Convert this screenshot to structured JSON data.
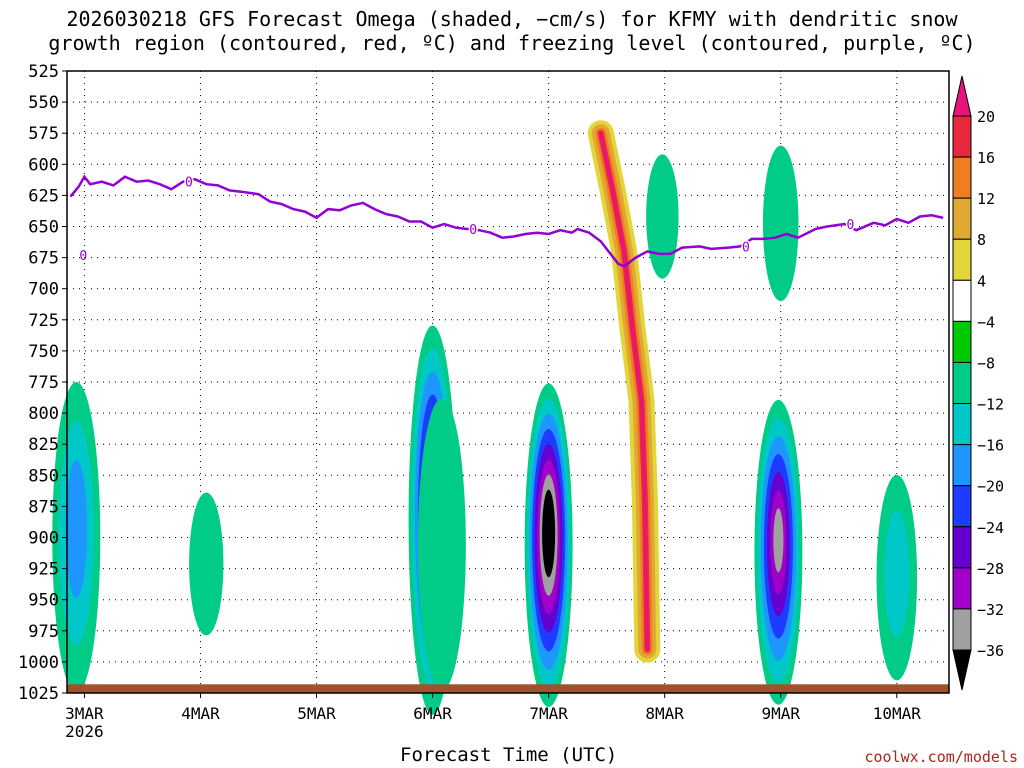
{
  "title": {
    "line1": "2026030218 GFS Forecast Omega (shaded, −cm/s) for KFMY with dendritic snow",
    "line2": "growth region (contoured, red, ºC) and freezing level (contoured, purple, ºC)"
  },
  "credit": "coolwx.com/models",
  "chart_data": {
    "type": "heatmap",
    "title": "2026030218 GFS Forecast Omega (shaded, −cm/s) for KFMY with dendritic snow growth region (contoured, red, ºC) and freezing level (contoured, purple, ºC)",
    "xlabel": "Forecast Time (UTC)",
    "ylabel": "",
    "x_range_days": [
      -0.15,
      7.45
    ],
    "x_ticks": [
      {
        "day": 0,
        "label": "3MAR",
        "sublabel": "2026"
      },
      {
        "day": 1,
        "label": "4MAR"
      },
      {
        "day": 2,
        "label": "5MAR"
      },
      {
        "day": 3,
        "label": "6MAR"
      },
      {
        "day": 4,
        "label": "7MAR"
      },
      {
        "day": 5,
        "label": "8MAR"
      },
      {
        "day": 6,
        "label": "9MAR"
      },
      {
        "day": 7,
        "label": "10MAR"
      }
    ],
    "y_range_hpa": [
      1025,
      525
    ],
    "y_ticks": [
      "525",
      "550",
      "575",
      "600",
      "625",
      "650",
      "675",
      "700",
      "725",
      "750",
      "775",
      "800",
      "825",
      "850",
      "875",
      "900",
      "925",
      "950",
      "975",
      "1000",
      "1025"
    ],
    "grid": "dotted",
    "colorbar": {
      "position": "right",
      "levels": [
        -36,
        -32,
        -28,
        -24,
        -20,
        -16,
        -12,
        -8,
        -4,
        4,
        8,
        12,
        16,
        20
      ],
      "labels": [
        "20",
        "16",
        "12",
        "8",
        "4",
        "−4",
        "−8",
        "−12",
        "−16",
        "−20",
        "−24",
        "−28",
        "−32",
        "−36"
      ],
      "colors": {
        "gt20": "#e8147a",
        "16to20": "#e8283c",
        "12to16": "#ef7d22",
        "8to12": "#e0a933",
        "4to8": "#e3d53a",
        "m4to4": "#ffffff",
        "m8tom4": "#00c800",
        "m12tom8": "#00cc88",
        "m16tom12": "#00c8c8",
        "m20tom16": "#1e96ff",
        "m24tom20": "#1e3cff",
        "m28tom24": "#6400d0",
        "m32tom28": "#a000c8",
        "m36tom32": "#a0a0a0",
        "ltm36": "#000000"
      }
    },
    "freezing_level": {
      "label": "0",
      "color": "#9400d3",
      "points": [
        [
          -0.12,
          626
        ],
        [
          -0.05,
          618
        ],
        [
          0.0,
          610
        ],
        [
          0.05,
          616
        ],
        [
          0.15,
          614
        ],
        [
          0.25,
          617
        ],
        [
          0.35,
          610
        ],
        [
          0.45,
          614
        ],
        [
          0.55,
          613
        ],
        [
          0.65,
          616
        ],
        [
          0.75,
          620
        ],
        [
          0.85,
          614
        ],
        [
          0.95,
          612
        ],
        [
          1.05,
          616
        ],
        [
          1.15,
          617
        ],
        [
          1.25,
          621
        ],
        [
          1.35,
          622
        ],
        [
          1.5,
          624
        ],
        [
          1.6,
          630
        ],
        [
          1.7,
          632
        ],
        [
          1.8,
          636
        ],
        [
          1.9,
          638
        ],
        [
          2.0,
          643
        ],
        [
          2.1,
          636
        ],
        [
          2.2,
          637
        ],
        [
          2.3,
          633
        ],
        [
          2.4,
          631
        ],
        [
          2.5,
          636
        ],
        [
          2.6,
          640
        ],
        [
          2.7,
          642
        ],
        [
          2.8,
          646
        ],
        [
          2.9,
          646
        ],
        [
          3.0,
          651
        ],
        [
          3.1,
          648
        ],
        [
          3.2,
          651
        ],
        [
          3.3,
          652
        ],
        [
          3.4,
          653
        ],
        [
          3.5,
          655
        ],
        [
          3.6,
          659
        ],
        [
          3.7,
          658
        ],
        [
          3.8,
          656
        ],
        [
          3.9,
          655
        ],
        [
          4.0,
          656
        ],
        [
          4.1,
          653
        ],
        [
          4.2,
          655
        ],
        [
          4.25,
          652
        ],
        [
          4.35,
          655
        ],
        [
          4.45,
          662
        ],
        [
          4.5,
          668
        ],
        [
          4.6,
          680
        ],
        [
          4.65,
          682
        ],
        [
          4.75,
          675
        ],
        [
          4.85,
          670
        ],
        [
          4.95,
          672
        ],
        [
          5.05,
          672
        ],
        [
          5.15,
          667
        ],
        [
          5.3,
          666
        ],
        [
          5.4,
          668
        ],
        [
          5.55,
          667
        ],
        [
          5.65,
          666
        ],
        [
          5.75,
          660
        ],
        [
          5.85,
          660
        ],
        [
          5.95,
          659
        ],
        [
          6.05,
          656
        ],
        [
          6.15,
          659
        ],
        [
          6.3,
          652
        ],
        [
          6.4,
          650
        ],
        [
          6.55,
          648
        ],
        [
          6.65,
          653
        ],
        [
          6.8,
          647
        ],
        [
          6.9,
          649
        ],
        [
          7.0,
          644
        ],
        [
          7.1,
          647
        ],
        [
          7.2,
          642
        ],
        [
          7.3,
          641
        ],
        [
          7.4,
          643
        ]
      ],
      "isolated_labels": [
        [
          -0.01,
          673
        ]
      ]
    },
    "omega_blobs": [
      {
        "day": -0.07,
        "p_top": 745,
        "p_bot": 995,
        "peak": -16
      },
      {
        "day": 3.0,
        "p_top": 692,
        "p_bot": 1005,
        "peak": -32
      },
      {
        "day": 4.0,
        "p_top": 745,
        "p_bot": 1005,
        "peak": -40
      },
      {
        "day": 5.98,
        "p_top": 760,
        "p_bot": 1005,
        "peak": -32
      },
      {
        "day": 7.0,
        "p_top": 830,
        "p_bot": 995,
        "peak": -12
      },
      {
        "day": 3.08,
        "p_top": 760,
        "p_bot": 995,
        "peak": -8
      },
      {
        "day": 1.05,
        "p_top": 850,
        "p_bot": 965,
        "peak": -8
      },
      {
        "day": 6.0,
        "p_top": 570,
        "p_bot": 695,
        "peak": -8
      },
      {
        "day": 4.98,
        "p_top": 580,
        "p_bot": 680,
        "peak": -8
      }
    ],
    "positive_band": {
      "peak": 20,
      "points": [
        [
          4.45,
          575
        ],
        [
          4.55,
          620
        ],
        [
          4.65,
          670
        ],
        [
          4.72,
          730
        ],
        [
          4.8,
          790
        ],
        [
          4.83,
          870
        ],
        [
          4.85,
          990
        ]
      ]
    }
  }
}
